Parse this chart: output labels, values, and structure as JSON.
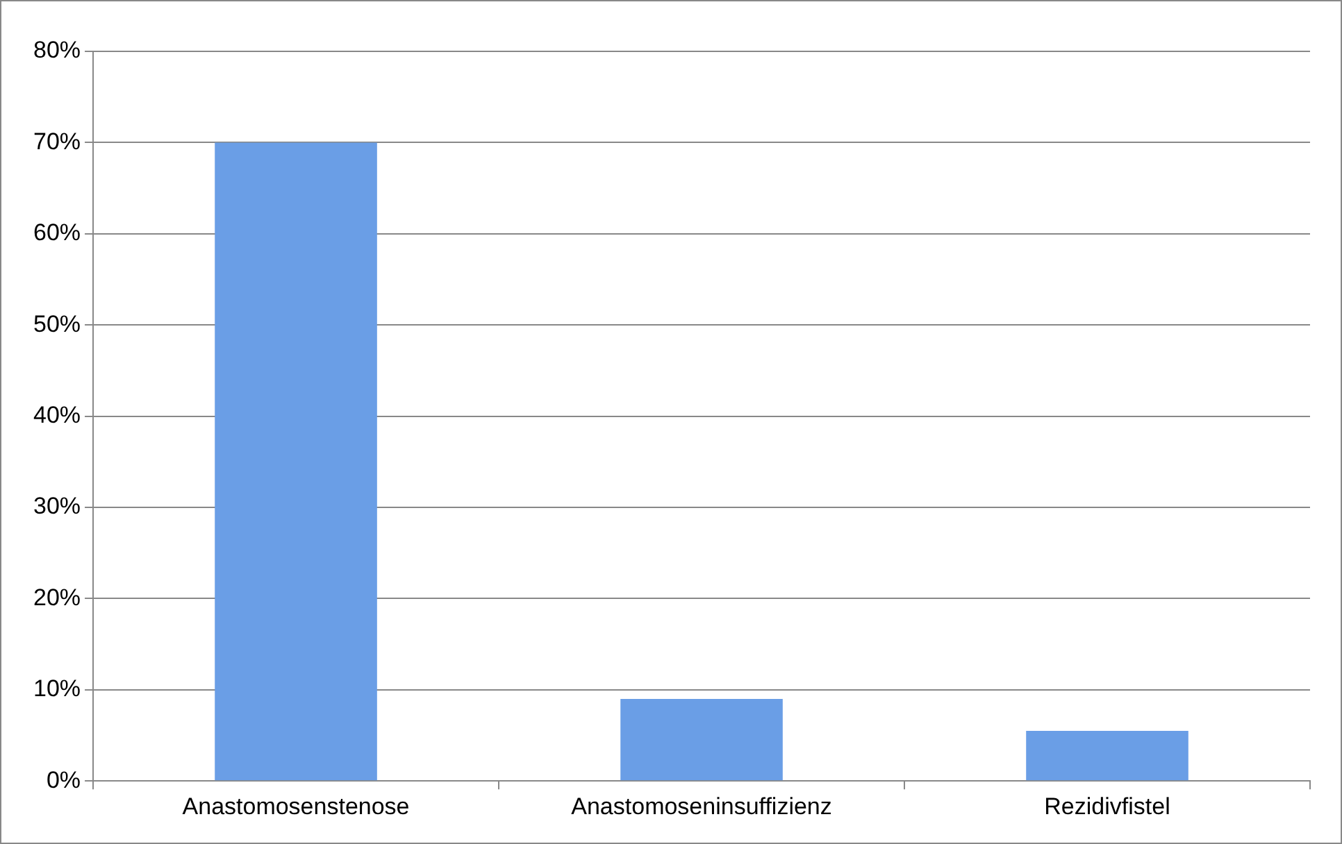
{
  "chart_data": {
    "type": "bar",
    "categories": [
      "Anastomosenstenose",
      "Anastomoseninsuffizienz",
      "Rezidivfistel"
    ],
    "values": [
      70,
      9,
      5.5
    ],
    "color": "#6a9ee6",
    "ylim": [
      0,
      80
    ],
    "yticks": [
      {
        "value": 0,
        "label": "0%"
      },
      {
        "value": 10,
        "label": "10%"
      },
      {
        "value": 20,
        "label": "20%"
      },
      {
        "value": 30,
        "label": "30%"
      },
      {
        "value": 40,
        "label": "40%"
      },
      {
        "value": 50,
        "label": "50%"
      },
      {
        "value": 60,
        "label": "60%"
      },
      {
        "value": 70,
        "label": "70%"
      },
      {
        "value": 80,
        "label": "80%"
      }
    ],
    "grid": "y"
  }
}
